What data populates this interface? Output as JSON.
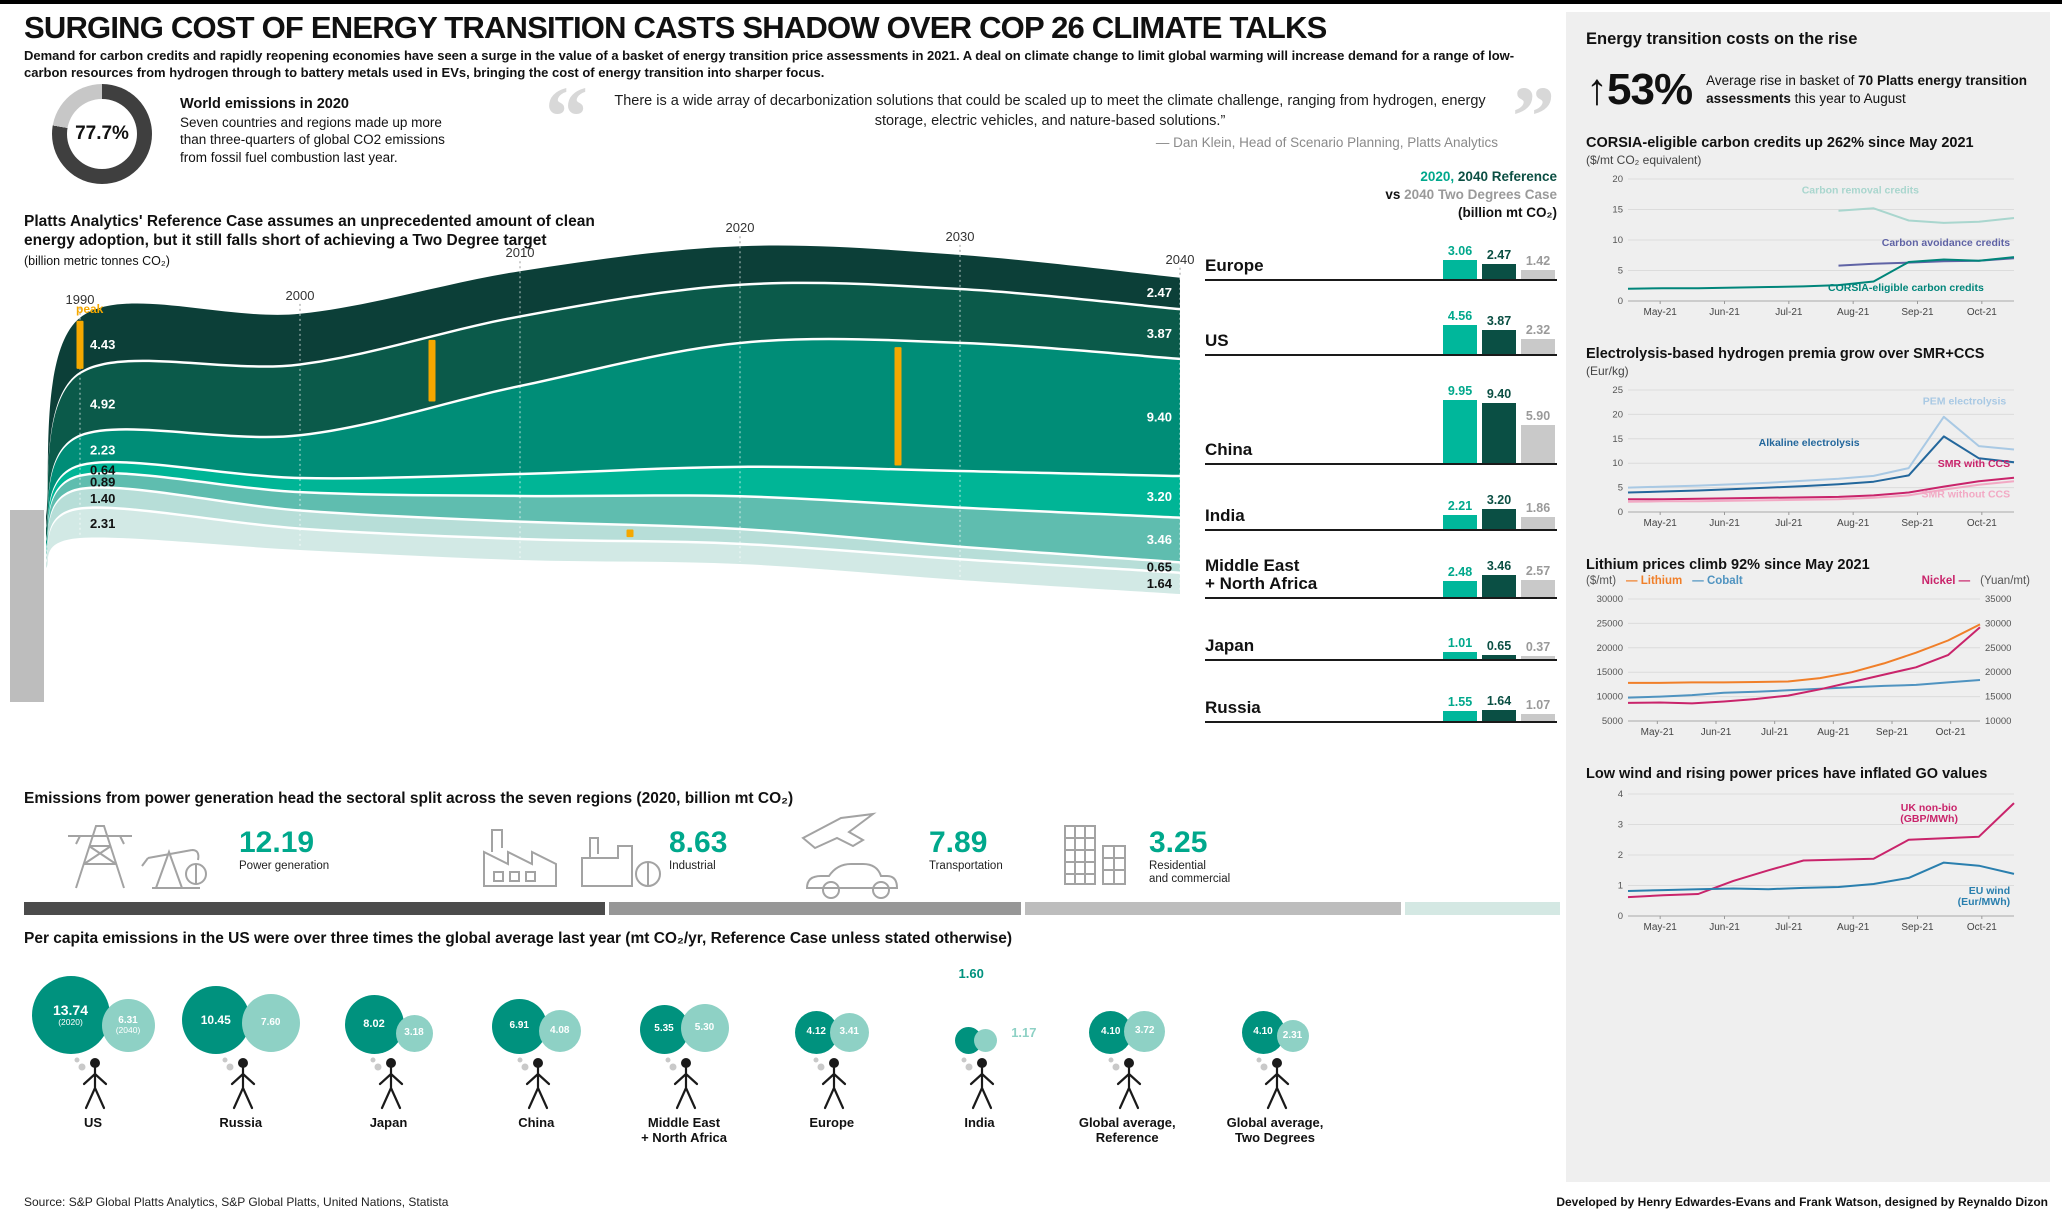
{
  "palette": {
    "bar_colors": [
      "#00b79b",
      "#0a4f44",
      "#c9c9c9"
    ],
    "bar_label_colors": [
      "#00a88c",
      "#0b4f43",
      "#9a9a9a"
    ],
    "sector_segment_colors": [
      "#4b4b4b",
      "#979797",
      "#bdbdbd",
      "#d4e8e3"
    ],
    "bubble_main": "#00927e",
    "bubble_secondary": "#8ed1c5",
    "peak_orange": "#f5a800",
    "accent_teal": "#00a88c",
    "sidebar_bg": "#efefef"
  },
  "header": {
    "title": "SURGING COST OF ENERGY TRANSITION CASTS SHADOW OVER COP 26 CLIMATE TALKS",
    "subtitle": "Demand for carbon credits and rapidly reopening economies have seen a surge in the value of a basket of energy transition price assessments in 2021. A deal on climate change to limit global warming will increase demand for a range of low-carbon resources from hydrogen through to battery metals used in EVs, bringing the cost of energy transition into sharper focus."
  },
  "donut": {
    "value": "77.7%",
    "title": "World emissions in 2020",
    "text": "Seven countries and regions made up more than three-quarters of global CO2 emissions from fossil fuel combustion last year."
  },
  "quote": {
    "open": "“",
    "close": "”",
    "text": "There is a wide array of decarbonization solutions that could be scaled up to meet the climate challenge, ranging from hydrogen, energy storage, electric vehicles, and nature-based solutions.”",
    "attribution": "— Dan Klein, Head of Scenario Planning, Platts Analytics"
  },
  "stream": {
    "heading": "Platts Analytics' Reference Case assumes an unprecedented amount of clean energy adoption, but it still falls short of achieving a Two Degree target",
    "unit": "(billion metric tonnes CO₂)",
    "peak_label": "peak",
    "years": [
      "1990",
      "2000",
      "2010",
      "2020",
      "2030",
      "2040"
    ]
  },
  "bars": {
    "legend": {
      "p2020": "2020,",
      "pref": " 2040 Reference",
      "vs": "vs ",
      "ptwo": "2040 Two Degrees Case",
      "unit": "(billion mt CO₂)"
    },
    "regions": [
      {
        "name": "Europe",
        "values": [
          3.06,
          2.47,
          1.42
        ]
      },
      {
        "name": "US",
        "values": [
          4.56,
          3.87,
          2.32
        ]
      },
      {
        "name": "China",
        "values": [
          9.95,
          9.4,
          5.9
        ]
      },
      {
        "name": "India",
        "values": [
          2.21,
          3.2,
          1.86
        ]
      },
      {
        "name": "Middle East\n+ North Africa",
        "values": [
          2.48,
          3.46,
          2.57
        ]
      },
      {
        "name": "Japan",
        "values": [
          1.01,
          0.65,
          0.37
        ]
      },
      {
        "name": "Russia",
        "values": [
          1.55,
          1.64,
          1.07
        ]
      }
    ]
  },
  "sectors": {
    "heading": "Emissions from power generation head the sectoral split across the seven regions (2020, billion mt CO₂)",
    "items": [
      {
        "label": "Power generation",
        "value": "12.19"
      },
      {
        "label": "Industrial",
        "value": "8.63"
      },
      {
        "label": "Transportation",
        "value": "7.89"
      },
      {
        "label": "Residential\nand commercial",
        "value": "3.25"
      }
    ]
  },
  "percapita": {
    "heading": "Per capita emissions in the US were over three times the global average last year (mt CO₂/yr, Reference Case unless stated otherwise)",
    "items": [
      {
        "label": "US",
        "v2020": 13.74,
        "v2040": 6.31,
        "note2020": "(2020)",
        "note2040": "(2040)"
      },
      {
        "label": "Russia",
        "v2020": 10.45,
        "v2040": 7.6
      },
      {
        "label": "Japan",
        "v2020": 8.02,
        "v2040": 3.18
      },
      {
        "label": "China",
        "v2020": 6.91,
        "v2040": 4.08
      },
      {
        "label": "Middle East\n+ North Africa",
        "v2020": 5.35,
        "v2040": 5.3
      },
      {
        "label": "Europe",
        "v2020": 4.12,
        "v2040": 3.41
      },
      {
        "label": "India",
        "v2020": 1.6,
        "v2040": 1.17,
        "outside": true
      },
      {
        "label": "Global average,\nReference",
        "v2020": 4.1,
        "v2040": 3.72
      },
      {
        "label": "Global average,\nTwo Degrees",
        "v2020": 4.1,
        "v2040": 2.31
      }
    ]
  },
  "sidebar": {
    "title": "Energy transition costs on the rise",
    "stat": {
      "arrow": "↑",
      "value": "53%",
      "desc_pre": "Average rise in basket of ",
      "desc_bold": "70 Platts energy transition assessments",
      "desc_post": " this year to August"
    }
  },
  "footer": {
    "source": "Source: S&P Global Platts Analytics, S&P Global Platts, United Nations, Statista",
    "credit": "Developed by Henry Edwardes-Evans and Frank Watson, designed by Reynaldo Dizon"
  },
  "chart_data": [
    {
      "id": "world-emissions-share",
      "type": "pie",
      "title": "World emissions in 2020",
      "labels": [
        "Seven countries and regions",
        "Rest of world"
      ],
      "values": [
        77.7,
        22.3
      ]
    },
    {
      "id": "emissions-stream",
      "type": "area",
      "title": "Platts Analytics' Reference Case emissions by region",
      "ylabel": "billion metric tonnes CO₂",
      "x": [
        1990,
        2000,
        2010,
        2020,
        2030,
        2040
      ],
      "series": [
        {
          "name": "Europe",
          "color": "#0c3f38",
          "values": [
            4.43,
            4.05,
            3.6,
            3.06,
            2.7,
            2.47
          ]
        },
        {
          "name": "US",
          "color": "#0b5a4a",
          "values": [
            4.92,
            5.6,
            5.5,
            4.56,
            4.2,
            3.87
          ]
        },
        {
          "name": "China",
          "color": "#008d77",
          "values": [
            2.23,
            3.3,
            7.0,
            9.95,
            10.3,
            9.4
          ]
        },
        {
          "name": "India",
          "color": "#00b596",
          "values": [
            0.64,
            0.95,
            1.6,
            2.21,
            2.8,
            3.2
          ]
        },
        {
          "name": "Middle East + North Africa",
          "color": "#5fbdaf",
          "values": [
            0.89,
            1.3,
            1.9,
            2.48,
            3.0,
            3.46
          ]
        },
        {
          "name": "Japan",
          "color": "#b7ded8",
          "values": [
            1.4,
            1.28,
            1.22,
            1.01,
            0.82,
            0.65
          ]
        },
        {
          "name": "Russia",
          "color": "#d2e9e5",
          "values": [
            2.31,
            1.65,
            1.62,
            1.55,
            1.6,
            1.64
          ]
        }
      ]
    },
    {
      "id": "regional-bars",
      "type": "bar",
      "title": "2020, 2040 Reference vs 2040 Two Degrees Case",
      "ylabel": "billion mt CO₂",
      "categories": [
        "Europe",
        "US",
        "China",
        "India",
        "Middle East + North Africa",
        "Japan",
        "Russia"
      ],
      "series": [
        {
          "name": "2020",
          "values": [
            3.06,
            4.56,
            9.95,
            2.21,
            2.48,
            1.01,
            1.55
          ]
        },
        {
          "name": "2040 Reference",
          "values": [
            2.47,
            3.87,
            9.4,
            3.2,
            3.46,
            0.65,
            1.64
          ]
        },
        {
          "name": "2040 Two Degrees Case",
          "values": [
            1.42,
            2.32,
            5.9,
            1.86,
            2.57,
            0.37,
            1.07
          ]
        }
      ]
    },
    {
      "id": "sector-split",
      "type": "bar",
      "title": "Sectoral split of emissions (2020, billion mt CO₂)",
      "categories": [
        "Power generation",
        "Industrial",
        "Transportation",
        "Residential and commercial"
      ],
      "values": [
        12.19,
        8.63,
        7.89,
        3.25
      ]
    },
    {
      "id": "per-capita",
      "type": "scatter",
      "title": "Per capita emissions (mt CO₂/yr)",
      "categories": [
        "US",
        "Russia",
        "Japan",
        "China",
        "Middle East + North Africa",
        "Europe",
        "India",
        "Global average, Reference",
        "Global average, Two Degrees"
      ],
      "series": [
        {
          "name": "2020",
          "values": [
            13.74,
            10.45,
            8.02,
            6.91,
            5.35,
            4.12,
            1.6,
            4.1,
            4.1
          ]
        },
        {
          "name": "2040",
          "values": [
            6.31,
            7.6,
            3.18,
            4.08,
            5.3,
            3.41,
            1.17,
            3.72,
            2.31
          ]
        }
      ]
    },
    {
      "id": "carbon-credits",
      "type": "line",
      "title": "CORSIA-eligible carbon credits up 262% since May 2021",
      "ylabel": "($/mt CO₂ equivalent)",
      "ylim": [
        0,
        20
      ],
      "yticks": [
        0,
        5,
        10,
        15,
        20
      ],
      "x_labels": [
        "May-21",
        "Jun-21",
        "Jul-21",
        "Aug-21",
        "Sep-21",
        "Oct-21"
      ],
      "series": [
        {
          "name": "Carbon removal credits",
          "color": "#a9d6ce",
          "values": [
            null,
            null,
            null,
            null,
            null,
            null,
            14.8,
            15.2,
            13.2,
            12.8,
            13.0,
            13.6
          ],
          "label_xf": 0.45,
          "label_yv": 17.6,
          "label_anchor": "start"
        },
        {
          "name": "Carbon avoidance credits",
          "color": "#5f63a5",
          "values": [
            null,
            null,
            null,
            null,
            null,
            null,
            5.8,
            6.1,
            6.3,
            6.5,
            6.6,
            7.0
          ],
          "label_xf": 0.99,
          "label_yv": 9.0,
          "label_anchor": "end"
        },
        {
          "name": "CORSIA-eligible carbon credits",
          "color": "#00857a",
          "values": [
            2.0,
            2.1,
            2.1,
            2.2,
            2.3,
            2.4,
            2.6,
            3.2,
            6.4,
            6.8,
            6.6,
            7.2
          ],
          "label_xf": 0.72,
          "label_yv": 1.6,
          "label_anchor": "middle"
        }
      ]
    },
    {
      "id": "hydrogen-premia",
      "type": "line",
      "title": "Electrolysis-based hydrogen premia grow over SMR+CCS",
      "ylabel": "(Eur/kg)",
      "ylim": [
        0,
        25
      ],
      "yticks": [
        0,
        5,
        10,
        15,
        20,
        25
      ],
      "x_labels": [
        "May-21",
        "Jun-21",
        "Jul-21",
        "Aug-21",
        "Sep-21",
        "Oct-21"
      ],
      "series": [
        {
          "name": "PEM electrolysis",
          "color": "#a9c9e4",
          "values": [
            5.0,
            5.2,
            5.4,
            5.7,
            6.0,
            6.4,
            6.8,
            7.4,
            9.0,
            19.5,
            13.5,
            12.8
          ],
          "label_xf": 0.98,
          "label_yv": 22.0,
          "label_anchor": "end"
        },
        {
          "name": "Alkaline electrolysis",
          "color": "#23679c",
          "values": [
            4.0,
            4.2,
            4.4,
            4.7,
            5.0,
            5.3,
            5.7,
            6.2,
            7.5,
            15.5,
            11.0,
            10.2
          ],
          "label_xf": 0.6,
          "label_yv": 13.5,
          "label_anchor": "end"
        },
        {
          "name": "SMR with CCS",
          "color": "#c9246b",
          "values": [
            2.6,
            2.6,
            2.7,
            2.8,
            2.9,
            3.0,
            3.1,
            3.4,
            4.0,
            5.2,
            6.3,
            7.0
          ],
          "label_xf": 0.99,
          "label_yv": 9.2,
          "label_anchor": "end"
        },
        {
          "name": "SMR without CCS",
          "color": "#f2a9c4",
          "values": [
            2.1,
            2.2,
            2.2,
            2.3,
            2.4,
            2.5,
            2.6,
            2.9,
            3.4,
            4.6,
            5.6,
            6.3
          ],
          "label_xf": 0.99,
          "label_yv": 3.0,
          "label_anchor": "end"
        }
      ]
    },
    {
      "id": "battery-metals",
      "type": "line",
      "title": "Lithium prices climb 92% since May 2021",
      "ylabel": "",
      "legend": "top",
      "unit_left": "($/mt)",
      "unit_right": "(Yuan/mt)",
      "ylim": [
        5000,
        30000
      ],
      "yticks": [
        5000,
        10000,
        15000,
        20000,
        25000,
        30000
      ],
      "ylim_right": [
        10000,
        35000
      ],
      "yticks_right": [
        10000,
        15000,
        20000,
        25000,
        30000,
        35000
      ],
      "x_labels": [
        "May-21",
        "Jun-21",
        "Jul-21",
        "Aug-21",
        "Sep-21",
        "Oct-21"
      ],
      "series": [
        {
          "name": "Lithium",
          "color": "#f07f29",
          "values": [
            12800,
            12800,
            12900,
            12900,
            13000,
            13100,
            13800,
            15000,
            16800,
            19000,
            21500,
            24800
          ]
        },
        {
          "name": "Cobalt",
          "color": "#4f93c0",
          "values": [
            9800,
            10000,
            10300,
            10800,
            11000,
            11300,
            11600,
            11900,
            12200,
            12400,
            12900,
            13400
          ]
        },
        {
          "name": "Nickel",
          "color": "#c9246b",
          "axis": "right",
          "values": [
            13700,
            13800,
            13600,
            14000,
            14500,
            15200,
            16500,
            18000,
            19500,
            21000,
            23500,
            29200
          ]
        }
      ]
    },
    {
      "id": "go-values",
      "type": "line",
      "title": "Low wind and rising power prices have inflated GO values",
      "ylabel": "",
      "ylim": [
        0,
        4
      ],
      "yticks": [
        0,
        1,
        2,
        3,
        4
      ],
      "x_labels": [
        "May-21",
        "Jun-21",
        "Jul-21",
        "Aug-21",
        "Sep-21",
        "Oct-21"
      ],
      "series": [
        {
          "name": "UK non-bio (GBP/MWh)",
          "color": "#c9246b",
          "values": [
            0.62,
            0.68,
            0.72,
            1.15,
            1.5,
            1.82,
            1.85,
            1.88,
            2.5,
            2.55,
            2.6,
            3.7
          ],
          "label_lines": [
            "UK non-bio",
            "(GBP/MWh)"
          ],
          "label_xf": 0.78,
          "label_yv": 3.45,
          "label_anchor": "middle"
        },
        {
          "name": "EU wind (Eur/MWh)",
          "color": "#2a7fae",
          "values": [
            0.82,
            0.85,
            0.88,
            0.9,
            0.88,
            0.92,
            0.95,
            1.05,
            1.25,
            1.75,
            1.65,
            1.38
          ],
          "label_lines": [
            "EU wind",
            "(Eur/MWh)"
          ],
          "label_xf": 0.99,
          "label_yv": 0.72,
          "label_anchor": "end"
        }
      ]
    }
  ]
}
